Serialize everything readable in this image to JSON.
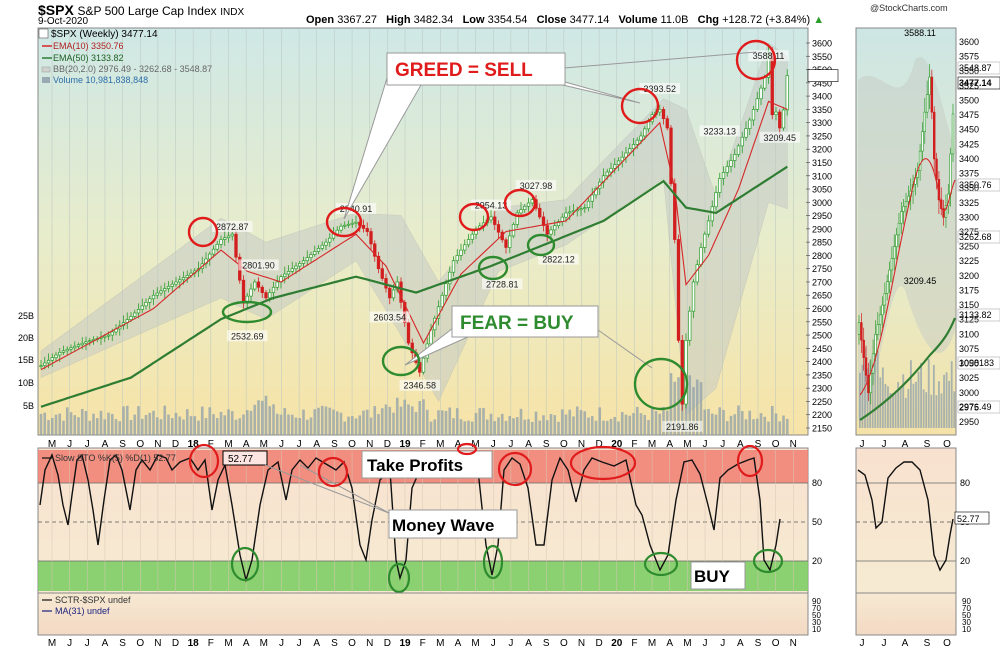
{
  "header": {
    "symbol": "$SPX",
    "name": "S&P 500 Large Cap Index",
    "exchange": "INDX",
    "date": "9-Oct-2020",
    "open_label": "Open",
    "open": "3367.27",
    "high_label": "High",
    "high": "3482.34",
    "low_label": "Low",
    "low": "3354.54",
    "close_label": "Close",
    "close": "3477.14",
    "volume_label": "Volume",
    "volume": "11.0B",
    "chg_label": "Chg",
    "chg": "+128.72 (+3.84%)",
    "watermark": "@StockCharts.com"
  },
  "legend": {
    "main": "$SPX (Weekly) 3477.14",
    "ema10": "EMA(10) 3350.76",
    "ema50": "EMA(50) 3133.82",
    "bb": "BB(20,2.0) 2976.49 - 3262.68 - 3548.87",
    "volume": "Volume 10,981,838,848",
    "sto": "Slow STO %K(5) %D(1) 52.77",
    "sto_box": "52.77",
    "sctr": "SCTR-$SPX undef",
    "ma": "MA(31) undef"
  },
  "colors": {
    "up": "#2a9d2a",
    "down": "#d21e1e",
    "ema10": "#d62728",
    "ema50": "#2e7d32",
    "greed": "#e01b1b",
    "fear": "#2e8b2e",
    "sto_red": "#f07f72",
    "sto_green": "#79cc60"
  },
  "annotations": {
    "greed": "GREED = SELL",
    "fear": "FEAR = BUY",
    "take_profits": "Take Profits",
    "money_wave": "Money Wave",
    "buy": "BUY"
  },
  "chart_data": [
    {
      "type": "candlestick",
      "series_name": "$SPX (Weekly)",
      "x_months": [
        "M",
        "J",
        "J",
        "A",
        "S",
        "O",
        "N",
        "D",
        "18",
        "F",
        "M",
        "A",
        "M",
        "J",
        "J",
        "A",
        "S",
        "O",
        "N",
        "D",
        "19",
        "F",
        "M",
        "A",
        "M",
        "J",
        "J",
        "A",
        "S",
        "O",
        "N",
        "D",
        "20",
        "F",
        "M",
        "A",
        "M",
        "J",
        "J",
        "A",
        "S",
        "O",
        "N"
      ],
      "y_ticks": [
        "3600",
        "3550",
        "3500",
        "3450",
        "3400",
        "3350",
        "3300",
        "3250",
        "3200",
        "3150",
        "3100",
        "3050",
        "3000",
        "2950",
        "2900",
        "2850",
        "2800",
        "2750",
        "2700",
        "2650",
        "2600",
        "2550",
        "2500",
        "2450",
        "2400",
        "2350",
        "2300",
        "2250",
        "2200",
        "2150"
      ],
      "ylim": [
        2130,
        3640
      ],
      "volume_ticks": [
        "25B",
        "20B",
        "15B",
        "10B",
        "5B"
      ],
      "close_path": [
        [
          0,
          2385
        ],
        [
          5,
          2435
        ],
        [
          12,
          2475
        ],
        [
          18,
          2500
        ],
        [
          24,
          2570
        ],
        [
          30,
          2650
        ],
        [
          36,
          2700
        ],
        [
          42,
          2750
        ],
        [
          48,
          2860
        ],
        [
          51,
          2880
        ],
        [
          54,
          2620
        ],
        [
          57,
          2700
        ],
        [
          60,
          2640
        ],
        [
          64,
          2720
        ],
        [
          70,
          2780
        ],
        [
          76,
          2850
        ],
        [
          80,
          2910
        ],
        [
          84,
          2925
        ],
        [
          87,
          2890
        ],
        [
          90,
          2750
        ],
        [
          93,
          2640
        ],
        [
          95,
          2700
        ],
        [
          98,
          2470
        ],
        [
          101,
          2360
        ],
        [
          104,
          2520
        ],
        [
          110,
          2780
        ],
        [
          116,
          2900
        ],
        [
          120,
          2945
        ],
        [
          124,
          2830
        ],
        [
          127,
          2960
        ],
        [
          131,
          3010
        ],
        [
          135,
          2880
        ],
        [
          140,
          2960
        ],
        [
          145,
          2980
        ],
        [
          150,
          3100
        ],
        [
          155,
          3170
        ],
        [
          160,
          3250
        ],
        [
          163,
          3330
        ],
        [
          165,
          3350
        ],
        [
          167,
          3280
        ],
        [
          169,
          2860
        ],
        [
          170,
          2480
        ],
        [
          171,
          2240
        ],
        [
          172,
          2480
        ],
        [
          174,
          2700
        ],
        [
          176,
          2830
        ],
        [
          178,
          2930
        ],
        [
          181,
          3090
        ],
        [
          185,
          3180
        ],
        [
          189,
          3310
        ],
        [
          193,
          3470
        ],
        [
          194,
          3560
        ],
        [
          195,
          3330
        ],
        [
          196,
          3340
        ],
        [
          197,
          3280
        ],
        [
          198,
          3348
        ],
        [
          199,
          3477
        ]
      ],
      "ema10_path": [
        [
          0,
          2370
        ],
        [
          30,
          2600
        ],
        [
          48,
          2820
        ],
        [
          55,
          2740
        ],
        [
          64,
          2700
        ],
        [
          84,
          2880
        ],
        [
          92,
          2760
        ],
        [
          102,
          2470
        ],
        [
          112,
          2730
        ],
        [
          124,
          2890
        ],
        [
          140,
          2930
        ],
        [
          165,
          3300
        ],
        [
          169,
          3050
        ],
        [
          172,
          2690
        ],
        [
          178,
          2800
        ],
        [
          186,
          3050
        ],
        [
          194,
          3380
        ],
        [
          199,
          3350
        ]
      ],
      "ema50_path": [
        [
          0,
          2230
        ],
        [
          24,
          2340
        ],
        [
          48,
          2560
        ],
        [
          62,
          2640
        ],
        [
          84,
          2720
        ],
        [
          100,
          2660
        ],
        [
          120,
          2760
        ],
        [
          150,
          2930
        ],
        [
          166,
          3080
        ],
        [
          172,
          2980
        ],
        [
          180,
          2960
        ],
        [
          199,
          3134
        ]
      ],
      "bb_upper_path": [
        [
          0,
          2440
        ],
        [
          48,
          2940
        ],
        [
          60,
          2850
        ],
        [
          84,
          2960
        ],
        [
          96,
          2950
        ],
        [
          106,
          2700
        ],
        [
          122,
          2980
        ],
        [
          140,
          3010
        ],
        [
          166,
          3390
        ],
        [
          172,
          3350
        ],
        [
          180,
          3020
        ],
        [
          194,
          3600
        ],
        [
          199,
          3549
        ]
      ],
      "bb_lower_path": [
        [
          0,
          2340
        ],
        [
          48,
          2640
        ],
        [
          60,
          2560
        ],
        [
          84,
          2780
        ],
        [
          96,
          2500
        ],
        [
          106,
          2250
        ],
        [
          122,
          2740
        ],
        [
          140,
          2840
        ],
        [
          166,
          3090
        ],
        [
          172,
          2200
        ],
        [
          180,
          2300
        ],
        [
          194,
          3000
        ],
        [
          199,
          2976
        ]
      ],
      "last_value": "3477.14",
      "labels": [
        {
          "x": 51,
          "y": 2873,
          "text": "2872.87"
        },
        {
          "x": 58,
          "y": 2800,
          "text": "2801.90"
        },
        {
          "x": 55,
          "y": 2533,
          "text": "2532.69"
        },
        {
          "x": 84,
          "y": 2941,
          "text": "2940.91"
        },
        {
          "x": 93,
          "y": 2604,
          "text": "2603.54"
        },
        {
          "x": 101,
          "y": 2347,
          "text": "2346.58"
        },
        {
          "x": 120,
          "y": 2954,
          "text": "2954.13"
        },
        {
          "x": 123,
          "y": 2729,
          "text": "2728.81"
        },
        {
          "x": 132,
          "y": 3028,
          "text": "3027.98"
        },
        {
          "x": 138,
          "y": 2822,
          "text": "2822.12"
        },
        {
          "x": 165,
          "y": 3393,
          "text": "3393.52"
        },
        {
          "x": 171,
          "y": 2192,
          "text": "2191.86"
        },
        {
          "x": 181,
          "y": 3233,
          "text": "3233.13"
        },
        {
          "x": 194,
          "y": 3588,
          "text": "3588.11"
        },
        {
          "x": 197,
          "y": 3209,
          "text": "3209.45"
        }
      ]
    },
    {
      "type": "line",
      "series_name": "Slow STO %K(5) %D(1)",
      "ylim": [
        0,
        100
      ],
      "y_ticks": [
        "80",
        "50",
        "20"
      ],
      "overbought": 80,
      "oversold": 20,
      "last_value": "52.77"
    },
    {
      "type": "line",
      "series_name": "SCTR-$SPX",
      "y_ticks": [
        "90",
        "70",
        "50",
        "30",
        "10"
      ]
    },
    {
      "type": "candlestick",
      "series_name": "$SPX (Daily detail)",
      "x_months": [
        "J",
        "J",
        "A",
        "S",
        "O"
      ],
      "y_ticks": [
        "3600",
        "3575",
        "3550",
        "3525",
        "3500",
        "3475",
        "3450",
        "3425",
        "3400",
        "3375",
        "3350",
        "3325",
        "3300",
        "3275",
        "3250",
        "3225",
        "3200",
        "3175",
        "3150",
        "3125",
        "3100",
        "3075",
        "3050",
        "3025",
        "3000",
        "2975",
        "2950"
      ],
      "ylim": [
        2925,
        3625
      ],
      "value_labels": [
        "3588.11",
        "3548.87",
        "3477.14",
        "3350.76",
        "3262.68",
        "3209.45",
        "3133.82",
        "1098183",
        "2976.49"
      ],
      "sto_ticks": [
        "80",
        "50",
        "20"
      ],
      "sto_last": "52.77",
      "sctr_ticks": [
        "90",
        "70",
        "50",
        "30",
        "10"
      ]
    }
  ]
}
